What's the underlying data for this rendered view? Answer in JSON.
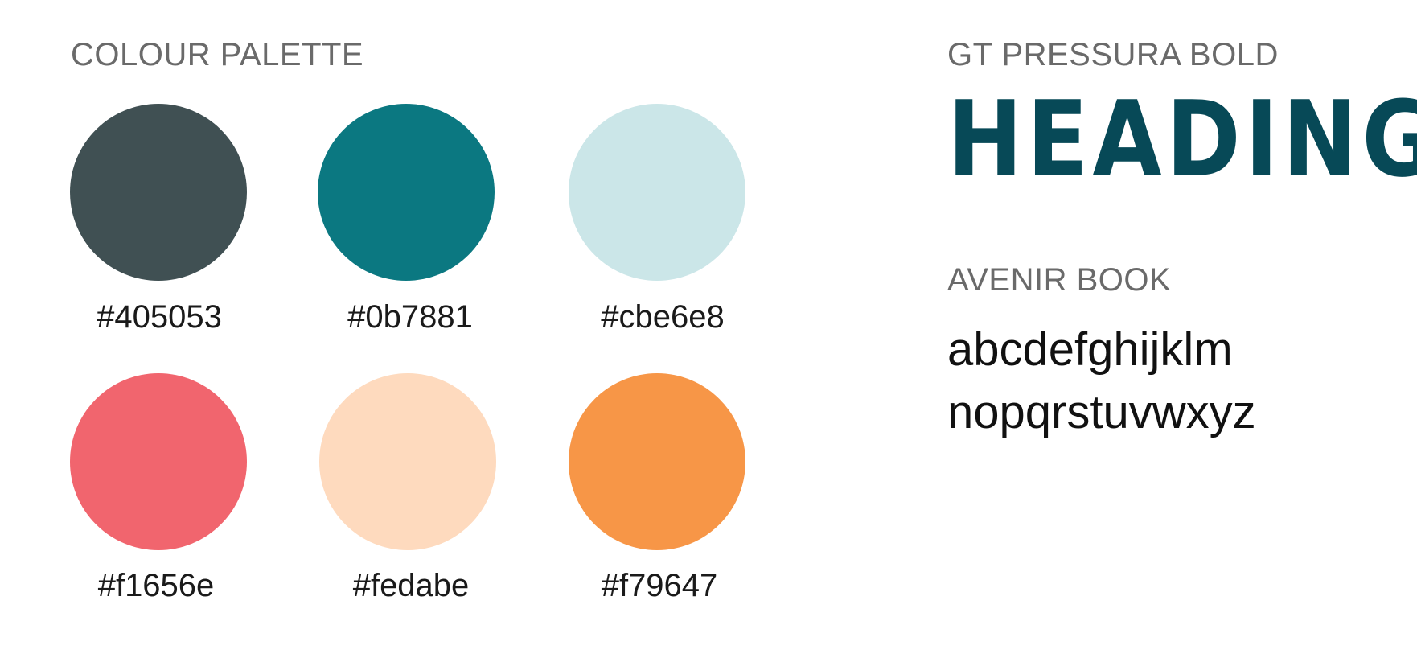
{
  "palette": {
    "title": "COLOUR PALETTE",
    "swatches": [
      {
        "hex": "#405053",
        "color": "#405053"
      },
      {
        "hex": "#0b7881",
        "color": "#0b7881"
      },
      {
        "hex": "#cbe6e8",
        "color": "#cbe6e8"
      },
      {
        "hex": "#f1656e",
        "color": "#f1656e"
      },
      {
        "hex": "#fedabe",
        "color": "#fedabe"
      },
      {
        "hex": "#f79647",
        "color": "#f79647"
      }
    ]
  },
  "typography": {
    "heading_font_title": "GT PRESSURA BOLD",
    "heading_sample": "HEADING",
    "heading_color": "#074957",
    "body_font_title": "AVENIR BOOK",
    "body_sample_line1": "abcdefghijklm",
    "body_sample_line2": "nopqrstuvwxyz"
  }
}
